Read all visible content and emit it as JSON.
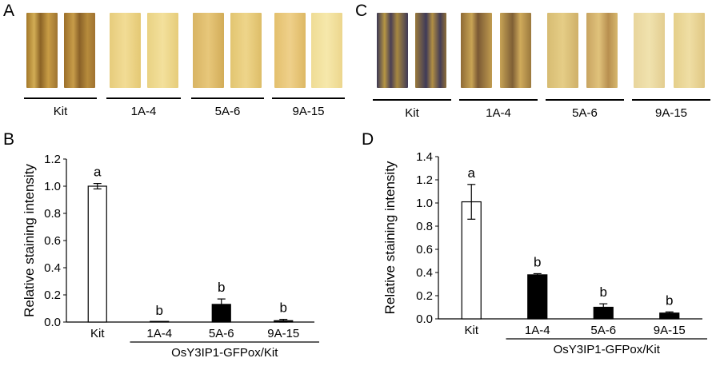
{
  "panels": {
    "a": "A",
    "b": "B",
    "c": "C",
    "d": "D"
  },
  "leaf_groups_a": [
    "Kit",
    "1A-4",
    "5A-6",
    "9A-15"
  ],
  "leaf_groups_c": [
    "Kit",
    "1A-4",
    "5A-6",
    "9A-15"
  ],
  "chart_data": [
    {
      "type": "bar",
      "panel": "B",
      "ylabel": "Relative staining intensity",
      "categories": [
        "Kit",
        "1A-4",
        "5A-6",
        "9A-15"
      ],
      "values": [
        1.0,
        0.0,
        0.13,
        0.01
      ],
      "errors": [
        0.02,
        0.0,
        0.04,
        0.01
      ],
      "letters": [
        "a",
        "b",
        "b",
        "b"
      ],
      "fills": [
        "#ffffff",
        "#000000",
        "#000000",
        "#000000"
      ],
      "ylim": [
        0,
        1.2
      ],
      "yticks": [
        "0.0",
        "0.2",
        "0.4",
        "0.6",
        "0.8",
        "1.0",
        "1.2"
      ],
      "group_label": "OsY3IP1-GFPox/Kit"
    },
    {
      "type": "bar",
      "panel": "D",
      "ylabel": "Relative staining intensity",
      "categories": [
        "Kit",
        "1A-4",
        "5A-6",
        "9A-15"
      ],
      "values": [
        1.01,
        0.38,
        0.1,
        0.05
      ],
      "errors": [
        0.15,
        0.01,
        0.03,
        0.01
      ],
      "letters": [
        "a",
        "b",
        "b",
        "b"
      ],
      "fills": [
        "#ffffff",
        "#000000",
        "#000000",
        "#000000"
      ],
      "ylim": [
        0,
        1.4
      ],
      "yticks": [
        "0.0",
        "0.2",
        "0.4",
        "0.6",
        "0.8",
        "1.0",
        "1.2",
        "1.4"
      ],
      "group_label": "OsY3IP1-GFPox/Kit"
    }
  ]
}
